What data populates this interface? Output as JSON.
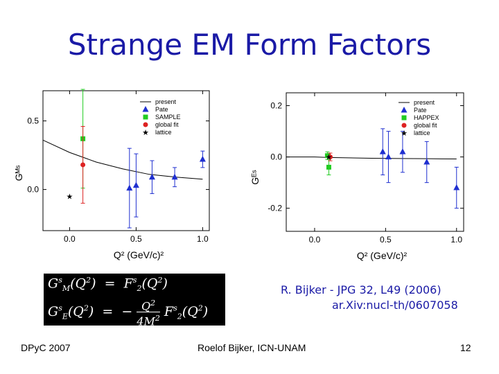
{
  "slide": {
    "title": "Strange EM Form Factors",
    "reference_line1": "R. Bijker - JPG 32, L49 (2006)",
    "reference_line2": "ar.Xiv:nucl-th/0607058",
    "footer_left": "DPyC 2007",
    "footer_center": "Roelof Bijker, ICN-UNAM",
    "footer_right": "12"
  },
  "formula": {
    "line1": "G_M^s(Q^2) = F_2^s(Q^2)",
    "line2": "G_E^s(Q^2) = -Q^2/(4M^2) F_2^s(Q^2)"
  },
  "colors": {
    "title": "#1a1aa6",
    "pate": "#1f2fd0",
    "sample": "#22cc22",
    "happex": "#22cc22",
    "global_fit": "#dd2222",
    "lattice": "#000000"
  },
  "chart_data": [
    {
      "type": "scatter",
      "xlabel": "Q² (GeV/c)²",
      "ylabel": "G_M^s",
      "xlim": [
        -0.2,
        1.05
      ],
      "ylim": [
        -0.3,
        0.72
      ],
      "xticks": [
        "0.0",
        "0.5",
        "1.0"
      ],
      "yticks": [
        "0.0",
        "0.5"
      ],
      "legend": [
        "present",
        "Pate",
        "SAMPLE",
        "global fit",
        "lattice"
      ],
      "legend_position": "top-right",
      "curve": {
        "name": "present",
        "x": [
          -0.2,
          0.0,
          0.2,
          0.4,
          0.6,
          0.8,
          1.0
        ],
        "y": [
          0.36,
          0.27,
          0.2,
          0.15,
          0.11,
          0.09,
          0.075
        ]
      },
      "series": [
        {
          "name": "Pate",
          "marker": "triangle",
          "points": [
            {
              "x": 0.45,
              "y": 0.01,
              "err": 0.29
            },
            {
              "x": 0.5,
              "y": 0.03,
              "err": 0.23
            },
            {
              "x": 0.62,
              "y": 0.09,
              "err": 0.12
            },
            {
              "x": 0.79,
              "y": 0.09,
              "err": 0.07
            },
            {
              "x": 1.0,
              "y": 0.22,
              "err": 0.06
            }
          ]
        },
        {
          "name": "SAMPLE",
          "marker": "square",
          "points": [
            {
              "x": 0.1,
              "y": 0.37,
              "err": 0.36
            }
          ]
        },
        {
          "name": "global fit",
          "marker": "circle",
          "points": [
            {
              "x": 0.1,
              "y": 0.18,
              "err": 0.28
            }
          ]
        },
        {
          "name": "lattice",
          "marker": "star",
          "points": [
            {
              "x": 0.0,
              "y": -0.05,
              "err": 0
            }
          ]
        }
      ]
    },
    {
      "type": "scatter",
      "xlabel": "Q² (GeV/c)²",
      "ylabel": "G_E^s",
      "xlim": [
        -0.2,
        1.05
      ],
      "ylim": [
        -0.29,
        0.25
      ],
      "xticks": [
        "0.0",
        "0.5",
        "1.0"
      ],
      "yticks": [
        "-0.2",
        "0.0",
        "0.2"
      ],
      "legend": [
        "present",
        "Pate",
        "HAPPEX",
        "global fit",
        "lattice"
      ],
      "legend_position": "top-right",
      "curve": {
        "name": "present",
        "x": [
          -0.2,
          0.0,
          0.1,
          0.2,
          0.4,
          0.6,
          0.8,
          1.0
        ],
        "y": [
          0.0,
          0.0,
          -0.002,
          -0.003,
          -0.005,
          -0.006,
          -0.007,
          -0.008
        ]
      },
      "series": [
        {
          "name": "Pate",
          "marker": "triangle",
          "points": [
            {
              "x": 0.48,
              "y": 0.02,
              "err": 0.09
            },
            {
              "x": 0.52,
              "y": 0.0,
              "err": 0.1
            },
            {
              "x": 0.62,
              "y": 0.02,
              "err": 0.08
            },
            {
              "x": 0.79,
              "y": -0.02,
              "err": 0.08
            },
            {
              "x": 1.0,
              "y": -0.12,
              "err": 0.08
            }
          ]
        },
        {
          "name": "HAPPEX",
          "marker": "square",
          "points": [
            {
              "x": 0.09,
              "y": 0.005,
              "err": 0.015
            },
            {
              "x": 0.1,
              "y": -0.04,
              "err": 0.03
            }
          ]
        },
        {
          "name": "global fit",
          "marker": "circle",
          "points": [
            {
              "x": 0.11,
              "y": 0.0,
              "err": 0.015
            }
          ]
        },
        {
          "name": "lattice",
          "marker": "star",
          "points": [
            {
              "x": 0.1,
              "y": 0.0,
              "err": 0
            }
          ]
        }
      ]
    }
  ]
}
